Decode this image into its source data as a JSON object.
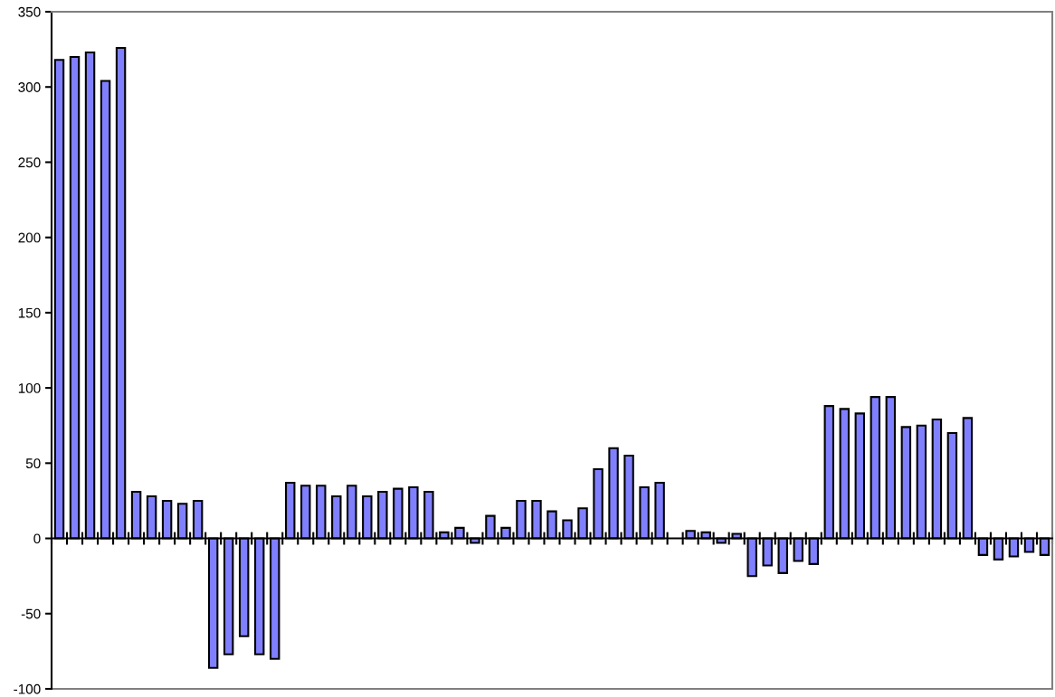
{
  "chart_data": {
    "type": "bar",
    "categories": [
      null,
      null,
      null,
      null,
      null,
      null,
      null,
      null,
      null,
      null,
      null,
      null,
      null,
      null,
      null,
      null,
      null,
      null,
      null,
      null,
      null,
      null,
      null,
      null,
      null,
      null,
      null,
      null,
      null,
      null,
      null,
      null,
      null,
      null,
      null,
      null,
      null,
      null,
      null,
      null,
      null,
      null,
      null,
      null,
      null,
      null,
      null,
      null,
      null,
      null,
      null,
      null,
      null,
      null,
      null,
      null,
      null,
      null,
      null,
      null,
      null,
      null,
      null,
      null,
      null
    ],
    "values": [
      318,
      320,
      323,
      304,
      326,
      31,
      28,
      25,
      23,
      25,
      -86,
      -77,
      -65,
      -77,
      -80,
      37,
      35,
      35,
      28,
      35,
      28,
      31,
      33,
      34,
      31,
      4,
      7,
      -3,
      15,
      7,
      25,
      25,
      18,
      12,
      20,
      46,
      60,
      55,
      34,
      37,
      null,
      5,
      4,
      -3,
      3,
      -25,
      -18,
      -23,
      -15,
      -17,
      88,
      86,
      83,
      94,
      94,
      74,
      75,
      79,
      70,
      80,
      -11,
      -14,
      -12,
      -9,
      -11
    ],
    "color": "#8080ff",
    "ylim": [
      -100,
      350
    ],
    "yticks": [
      -100,
      -50,
      0,
      50,
      100,
      150,
      200,
      250,
      300,
      350
    ],
    "tick_labels": "y"
  }
}
